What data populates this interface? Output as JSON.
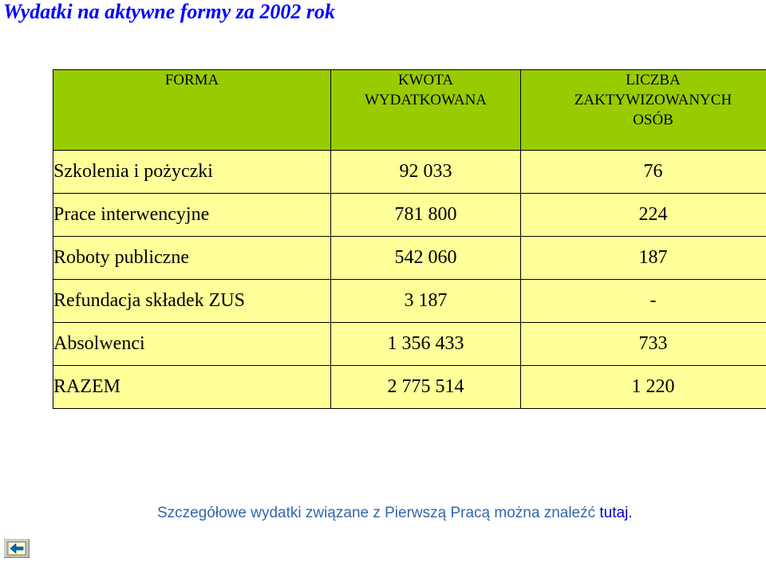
{
  "title": "Wydatki na aktywne formy za 2002 rok",
  "table": {
    "headers": [
      [
        "FORMA"
      ],
      [
        "KWOTA",
        "WYDATKOWANA"
      ],
      [
        "LICZBA",
        "ZAKTYWIZOWANYCH",
        "OSÓB"
      ]
    ],
    "rows": [
      [
        "Szkolenia i pożyczki",
        "92 033",
        "76"
      ],
      [
        "Prace interwencyjne",
        "781 800",
        "224"
      ],
      [
        "Roboty publiczne",
        "542 060",
        "187"
      ],
      [
        "Refundacja składek ZUS",
        "3 187",
        "-"
      ],
      [
        "Absolwenci",
        "1 356 433",
        "733"
      ],
      [
        "RAZEM",
        "2 775 514",
        "1 220"
      ]
    ]
  },
  "footer": {
    "text": "Szczegółowe wydatki związane z Pierwszą Pracą można znaleźć",
    "link_text": "tutaj."
  },
  "nav_button": {
    "icon": "back-arrow-icon"
  },
  "colors": {
    "title": "#0000ff",
    "header_bg": "#99cc00",
    "row_bg": "#ffff99",
    "footer_text": "#3366aa",
    "link": "#0000cc"
  }
}
